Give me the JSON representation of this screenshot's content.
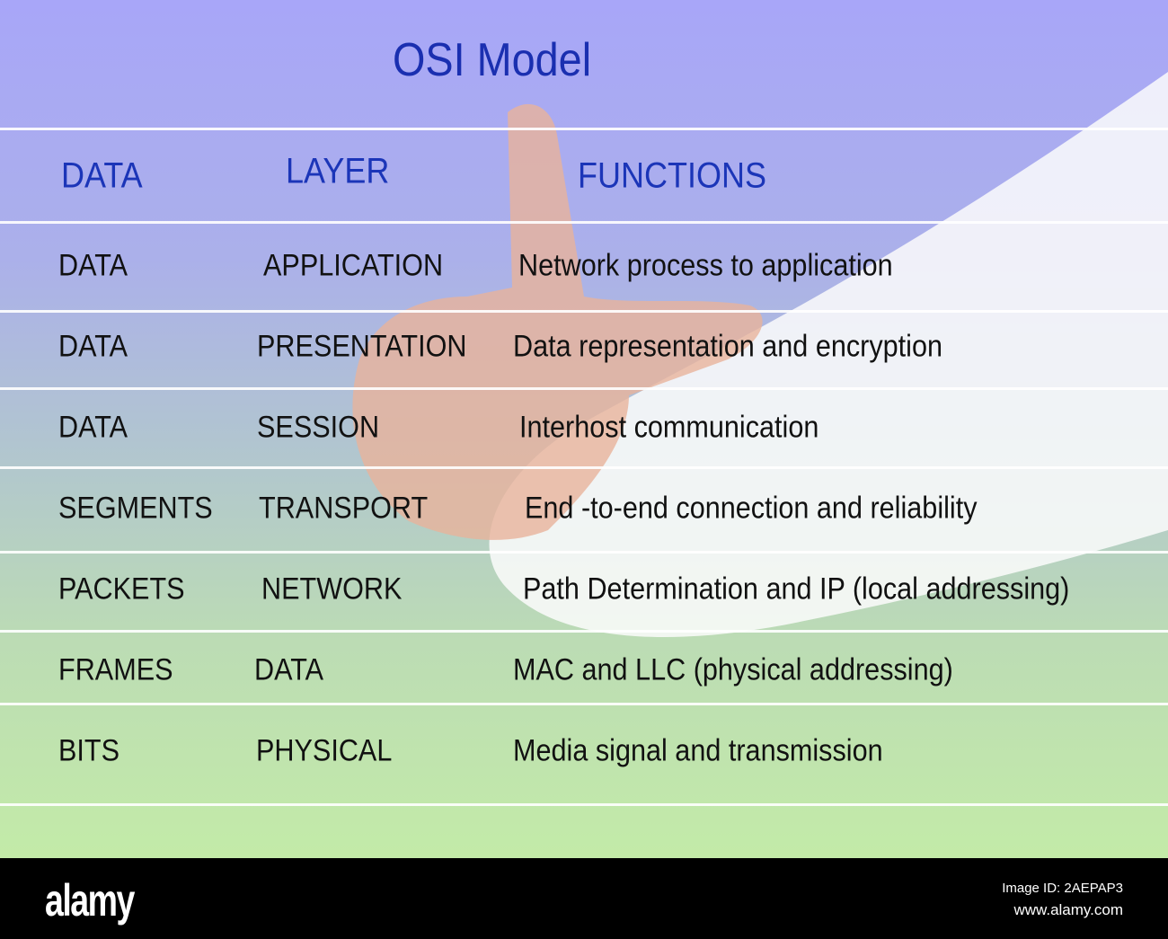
{
  "title": "OSI Model",
  "headers": [
    "DATA",
    "LAYER",
    "FUNCTIONS"
  ],
  "rows": [
    {
      "data": "DATA",
      "layer": "APPLICATION",
      "function": "Network process to application"
    },
    {
      "data": "DATA",
      "layer": "PRESENTATION",
      "function": "Data representation and encryption"
    },
    {
      "data": "DATA",
      "layer": "SESSION",
      "function": "Interhost communication"
    },
    {
      "data": "SEGMENTS",
      "layer": "TRANSPORT",
      "function": "End -to-end connection and reliability"
    },
    {
      "data": "PACKETS",
      "layer": "NETWORK",
      "function": "Path Determination and IP (local addressing)"
    },
    {
      "data": "FRAMES",
      "layer": "DATA",
      "function": "MAC and LLC (physical addressing)"
    },
    {
      "data": "BITS",
      "layer": "PHYSICAL",
      "function": "Media signal and transmission"
    }
  ],
  "footer": {
    "logo": "alamy",
    "image_id": "Image ID: 2AEPAP3",
    "url": "www.alamy.com"
  },
  "colors": {
    "title": "#1a2fb0",
    "top": "#a8a6f8",
    "bottom": "#c3eba8"
  }
}
